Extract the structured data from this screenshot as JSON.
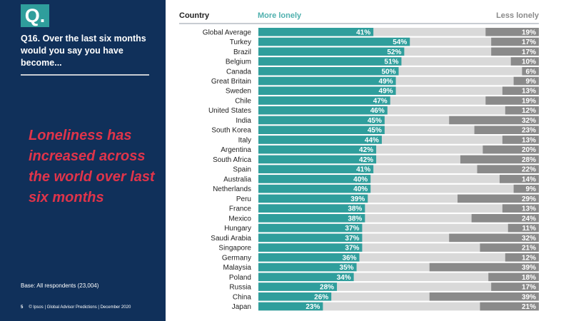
{
  "sidebar": {
    "q_badge": "Q.",
    "question": "Q16. Over the last six months would you say you have become...",
    "headline": "Loneliness has increased across the world over last six months",
    "base": "Base: All respondents (23,004)",
    "page_number": "5",
    "footer": "© Ipsos | Global Advisor Predictions | December 2020"
  },
  "colors": {
    "sidebar_bg": "#10305a",
    "accent_teal": "#2f9e9c",
    "more_lonely_bar": "#2f9e9c",
    "neutral_bar": "#d9d9d9",
    "less_lonely_bar": "#8a8a8a",
    "headline": "#e0344a"
  },
  "chart_data": {
    "type": "bar",
    "orientation": "horizontal",
    "stacked": true,
    "column_header": "Country",
    "legend": [
      "More lonely",
      "Less lonely"
    ],
    "xlim": [
      0,
      100
    ],
    "categories": [
      "Global Average",
      "Turkey",
      "Brazil",
      "Belgium",
      "Canada",
      "Great Britain",
      "Sweden",
      "Chile",
      "United States",
      "India",
      "South Korea",
      "Italy",
      "Argentina",
      "South Africa",
      "Spain",
      "Australia",
      "Netherlands",
      "Peru",
      "France",
      "Mexico",
      "Hungary",
      "Saudi Arabia",
      "Singapore",
      "Germany",
      "Malaysia",
      "Poland",
      "Russia",
      "China",
      "Japan"
    ],
    "series": [
      {
        "name": "More lonely",
        "values": [
          41,
          54,
          52,
          51,
          50,
          49,
          49,
          47,
          46,
          45,
          45,
          44,
          42,
          42,
          41,
          40,
          40,
          39,
          38,
          38,
          37,
          37,
          37,
          36,
          35,
          34,
          28,
          26,
          23
        ]
      },
      {
        "name": "Less lonely",
        "values": [
          19,
          17,
          17,
          10,
          6,
          9,
          13,
          19,
          12,
          32,
          23,
          13,
          20,
          28,
          22,
          14,
          9,
          29,
          13,
          24,
          11,
          32,
          21,
          12,
          39,
          18,
          17,
          39,
          21
        ]
      }
    ]
  }
}
